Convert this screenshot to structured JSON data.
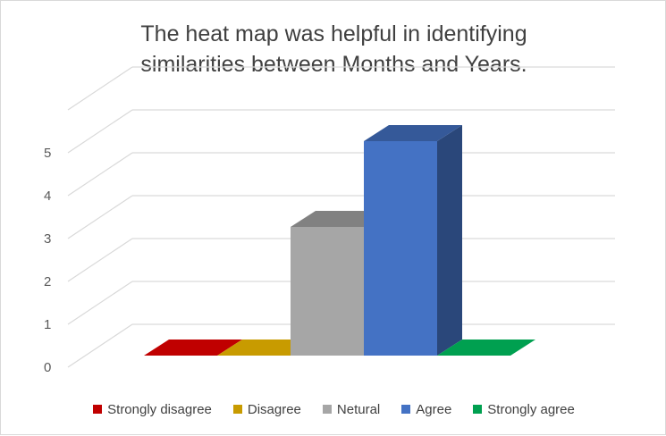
{
  "chart_data": {
    "type": "bar",
    "title_lines": [
      "The heat map was helpful in identifying",
      "similarities between Months and Years."
    ],
    "categories": [
      "Strongly disagree",
      "Disagree",
      "Netural",
      "Agree",
      "Strongly agree"
    ],
    "values": [
      0,
      0,
      3,
      5,
      0
    ],
    "colors": [
      "#c00000",
      "#c89b00",
      "#a6a6a6",
      "#4472c4",
      "#00a050"
    ],
    "y_ticks": [
      "0",
      "1",
      "2",
      "3",
      "4",
      "5"
    ],
    "ylim": [
      0,
      6
    ],
    "grid": true,
    "legend_position": "bottom",
    "style": "3d-column"
  }
}
